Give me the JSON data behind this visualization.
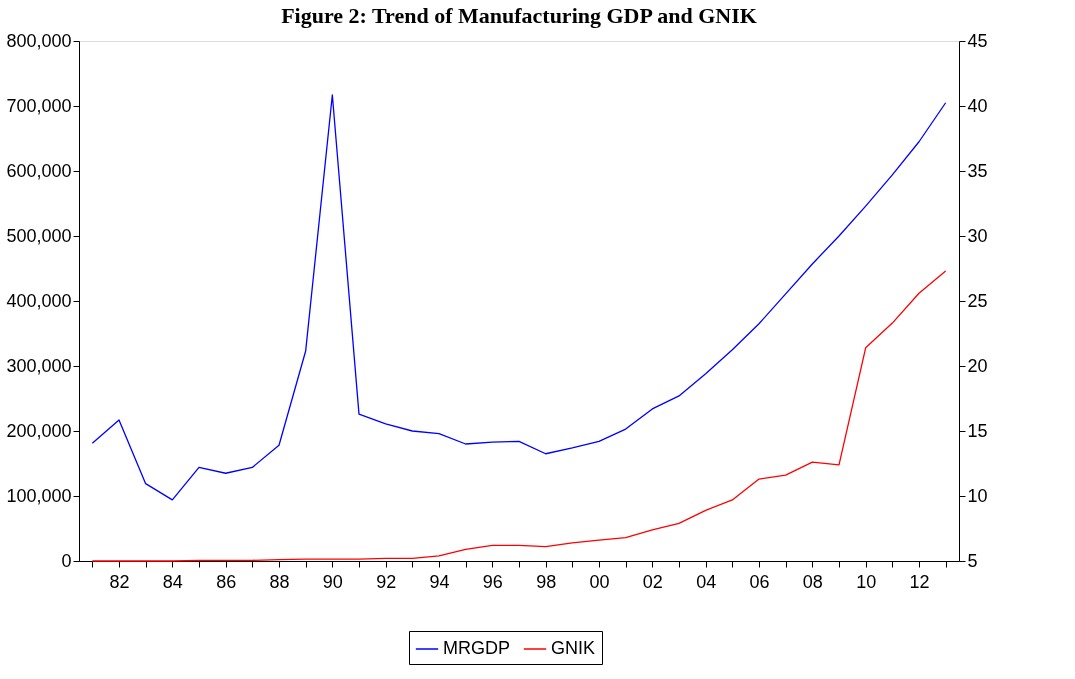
{
  "chart_data": {
    "type": "line",
    "title": "Figure 2: Trend of Manufacturing GDP and GNIK",
    "x": [
      1981,
      1982,
      1983,
      1984,
      1985,
      1986,
      1987,
      1988,
      1989,
      1990,
      1991,
      1992,
      1993,
      1994,
      1995,
      1996,
      1997,
      1998,
      1999,
      2000,
      2001,
      2002,
      2003,
      2004,
      2005,
      2006,
      2007,
      2008,
      2009,
      2010,
      2011,
      2012,
      2013
    ],
    "series": [
      {
        "name": "MRGDP",
        "color": "#0000ff",
        "values": [
          181000,
          217000,
          119000,
          94000,
          144000,
          135000,
          144000,
          178000,
          323000,
          717000,
          226000,
          211000,
          200000,
          196000,
          180000,
          183000,
          184000,
          165000,
          174000,
          184000,
          203000,
          234000,
          254000,
          288000,
          325000,
          365000,
          411000,
          457000,
          500000,
          546000,
          594000,
          645000,
          705000
        ]
      },
      {
        "name": "GNIK",
        "color": "#ff0000",
        "axis": "y2",
        "values": [
          5.0,
          5.0,
          5.0,
          5.0,
          5.05,
          5.05,
          5.05,
          5.1,
          5.15,
          5.15,
          5.15,
          5.2,
          5.2,
          5.4,
          5.9,
          6.2,
          6.2,
          6.1,
          6.4,
          6.6,
          6.8,
          7.4,
          7.9,
          8.9,
          9.7,
          11.3,
          11.6,
          12.6,
          12.4,
          21.4,
          23.3,
          25.6,
          27.3
        ]
      }
    ],
    "xlim": [
      1980.5,
      2013.5
    ],
    "xticks": [
      {
        "value": 1981,
        "label": null
      },
      {
        "value": 1982,
        "label": "82"
      },
      {
        "value": 1983,
        "label": null
      },
      {
        "value": 1984,
        "label": "84"
      },
      {
        "value": 1985,
        "label": null
      },
      {
        "value": 1986,
        "label": "86"
      },
      {
        "value": 1987,
        "label": null
      },
      {
        "value": 1988,
        "label": "88"
      },
      {
        "value": 1989,
        "label": null
      },
      {
        "value": 1990,
        "label": "90"
      },
      {
        "value": 1991,
        "label": null
      },
      {
        "value": 1992,
        "label": "92"
      },
      {
        "value": 1993,
        "label": null
      },
      {
        "value": 1994,
        "label": "94"
      },
      {
        "value": 1995,
        "label": null
      },
      {
        "value": 1996,
        "label": "96"
      },
      {
        "value": 1997,
        "label": null
      },
      {
        "value": 1998,
        "label": "98"
      },
      {
        "value": 1999,
        "label": null
      },
      {
        "value": 2000,
        "label": "00"
      },
      {
        "value": 2001,
        "label": null
      },
      {
        "value": 2002,
        "label": "02"
      },
      {
        "value": 2003,
        "label": null
      },
      {
        "value": 2004,
        "label": "04"
      },
      {
        "value": 2005,
        "label": null
      },
      {
        "value": 2006,
        "label": "06"
      },
      {
        "value": 2007,
        "label": null
      },
      {
        "value": 2008,
        "label": "08"
      },
      {
        "value": 2009,
        "label": null
      },
      {
        "value": 2010,
        "label": "10"
      },
      {
        "value": 2011,
        "label": null
      },
      {
        "value": 2012,
        "label": "12"
      },
      {
        "value": 2013,
        "label": null
      }
    ],
    "ylim": [
      0,
      800000
    ],
    "yticks": [
      {
        "value": 0,
        "label": "0"
      },
      {
        "value": 100000,
        "label": "100,000"
      },
      {
        "value": 200000,
        "label": "200,000"
      },
      {
        "value": 300000,
        "label": "300,000"
      },
      {
        "value": 400000,
        "label": "400,000"
      },
      {
        "value": 500000,
        "label": "500,000"
      },
      {
        "value": 600000,
        "label": "600,000"
      },
      {
        "value": 700000,
        "label": "700,000"
      },
      {
        "value": 800000,
        "label": "800,000"
      }
    ],
    "y2lim": [
      5,
      45
    ],
    "y2ticks": [
      5,
      10,
      15,
      20,
      25,
      30,
      35,
      40,
      45
    ],
    "grid": false,
    "legend": "bottom",
    "marker": "none",
    "line_style": "solid"
  }
}
